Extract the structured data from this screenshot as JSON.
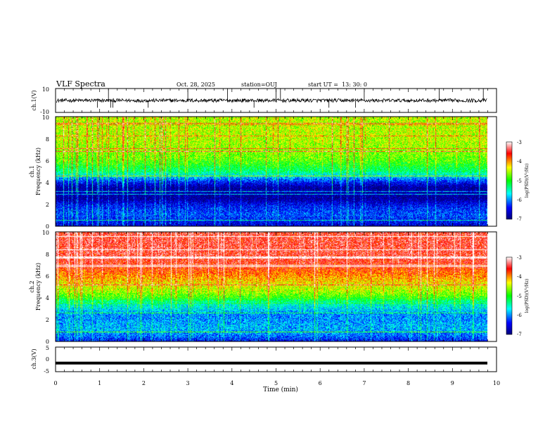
{
  "header": {
    "title": "VLF Spectra",
    "date": "Oct. 28, 2025",
    "station": "station=OUJ",
    "start": "start UT =  13: 30: 0"
  },
  "chart_data": [
    {
      "type": "line",
      "ylabel": "ch.1(V)",
      "xlim": [
        0,
        10
      ],
      "ylim": [
        -10,
        10
      ],
      "yticks": [
        "10",
        "-10"
      ],
      "baseline_value": 0,
      "noise_amplitude": 1.5,
      "spike_times": [
        0.95,
        1.2,
        1.25,
        1.3,
        2.1,
        3.0,
        3.9,
        4.5,
        5.0,
        5.1,
        6.2,
        6.8,
        7.0,
        8.7,
        9.7
      ]
    },
    {
      "type": "heatmap",
      "ylabel": "ch.1\nFrequency (kHz)",
      "xlim": [
        0,
        10
      ],
      "ylim": [
        0,
        10
      ],
      "yticks": [
        "0",
        "2",
        "4",
        "6",
        "8",
        "10"
      ],
      "colorbar": {
        "label": "log(PSD)(V²/Hz)",
        "range": [
          -7,
          -3
        ],
        "ticks": [
          "-3",
          "-4",
          "-5",
          "-6",
          "-7"
        ]
      },
      "profile_khz": [
        0,
        0.5,
        1,
        1.5,
        2,
        2.5,
        3,
        3.5,
        4,
        4.5,
        5,
        6,
        7,
        8,
        9,
        10
      ],
      "profile_logpsd": [
        -6.6,
        -6.4,
        -6.2,
        -6.3,
        -6.5,
        -6.9,
        -6.8,
        -6.9,
        -6.4,
        -5.8,
        -5.3,
        -4.8,
        -4.6,
        -4.5,
        -4.5,
        -4.5
      ]
    },
    {
      "type": "heatmap",
      "ylabel": "ch.2\nFrequency (kHz)",
      "xlim": [
        0,
        10
      ],
      "ylim": [
        0,
        10
      ],
      "yticks": [
        "0",
        "2",
        "4",
        "6",
        "8",
        "10"
      ],
      "colorbar": {
        "label": "log(PSD)(V²/Hz)",
        "range": [
          -7,
          -3
        ],
        "ticks": [
          "-3",
          "-4",
          "-5",
          "-6",
          "-7"
        ]
      },
      "profile_khz": [
        0,
        0.5,
        1,
        1.5,
        2,
        2.5,
        3,
        3.5,
        4,
        4.5,
        5,
        6,
        7,
        8,
        9,
        10
      ],
      "profile_logpsd": [
        -6.4,
        -6.1,
        -5.9,
        -5.9,
        -6.0,
        -6.0,
        -5.7,
        -5.5,
        -4.9,
        -4.6,
        -4.4,
        -4.0,
        -3.6,
        -3.5,
        -3.5,
        -3.5
      ]
    },
    {
      "type": "line",
      "ylabel": "ch.3(V)",
      "xlim": [
        0,
        10
      ],
      "ylim": [
        -5,
        5
      ],
      "yticks": [
        "5",
        "0",
        "-5"
      ],
      "baseline_value": -1.5
    }
  ],
  "xaxis": {
    "label": "Time (min)",
    "ticks": [
      "0",
      "1",
      "2",
      "3",
      "4",
      "5",
      "6",
      "7",
      "8",
      "9",
      "10"
    ]
  },
  "colors": {
    "colormap": [
      "#00007a",
      "#0000ff",
      "#00ffff",
      "#00ff00",
      "#ffff00",
      "#ff0000",
      "#ffffff"
    ]
  }
}
